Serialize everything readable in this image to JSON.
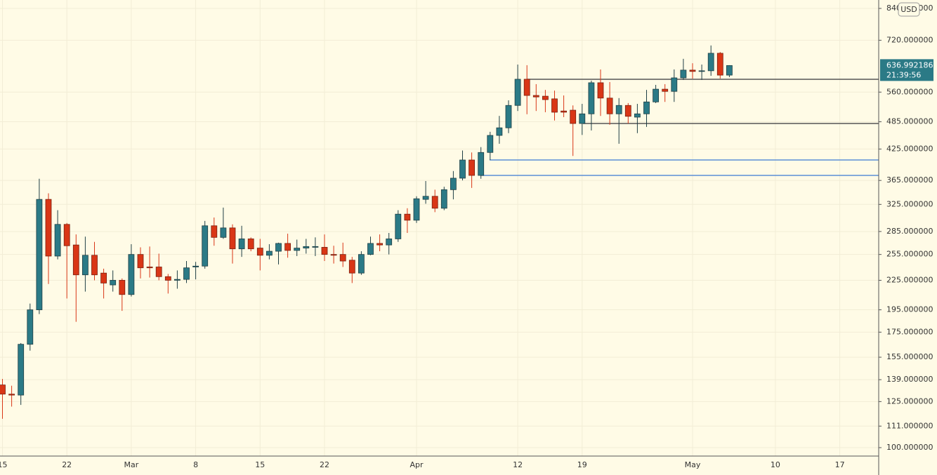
{
  "chart_data": {
    "type": "candlestick",
    "ylim": [
      96,
      875
    ],
    "log_scale": true,
    "grid": true,
    "currency": "USD",
    "countdown": "21:39:56",
    "up_color": "#2b7a86",
    "down_color": "#d93616",
    "yticks": [
      {
        "value": 840,
        "label": "840.000000"
      },
      {
        "value": 720,
        "label": "720.000000"
      },
      {
        "value": 560,
        "label": "560.000000"
      },
      {
        "value": 485,
        "label": "485.000000"
      },
      {
        "value": 425,
        "label": "425.000000"
      },
      {
        "value": 365,
        "label": "365.000000"
      },
      {
        "value": 325,
        "label": "325.000000"
      },
      {
        "value": 285,
        "label": "285.000000"
      },
      {
        "value": 255,
        "label": "255.000000"
      },
      {
        "value": 225,
        "label": "225.000000"
      },
      {
        "value": 195,
        "label": "195.000000"
      },
      {
        "value": 175,
        "label": "175.000000"
      },
      {
        "value": 155,
        "label": "155.000000"
      },
      {
        "value": 139,
        "label": "139.000000"
      },
      {
        "value": 125,
        "label": "125.000000"
      },
      {
        "value": 111,
        "label": "111.000000"
      },
      {
        "value": 100,
        "label": "100.000000"
      }
    ],
    "categories": [
      "15",
      null,
      null,
      null,
      null,
      null,
      null,
      "22",
      null,
      null,
      null,
      null,
      null,
      null,
      "Mar",
      null,
      null,
      null,
      null,
      null,
      null,
      "8",
      null,
      null,
      null,
      null,
      null,
      null,
      "15",
      null,
      null,
      null,
      null,
      null,
      null,
      "22",
      null,
      null,
      null,
      null,
      null,
      null,
      null,
      null,
      null,
      "Apr",
      null,
      null,
      null,
      null,
      null,
      null,
      null,
      null,
      null,
      null,
      "12",
      null,
      null,
      null,
      null,
      null,
      null,
      "19",
      null,
      null,
      null,
      null,
      null,
      null,
      null,
      null,
      null,
      null,
      null,
      "May",
      null,
      null,
      null,
      null,
      null,
      null,
      null,
      null,
      "10",
      null,
      null,
      null,
      null,
      null,
      null,
      "17",
      null,
      null,
      null
    ],
    "open": [
      135.5,
      129.6,
      129,
      165,
      195,
      333,
      253,
      295,
      267,
      231,
      254,
      233,
      220,
      225,
      210,
      255,
      240,
      240,
      229,
      225,
      226,
      240,
      241,
      293,
      277,
      290,
      262,
      275,
      263,
      254,
      259,
      269,
      260,
      263,
      264,
      264,
      255,
      255,
      248,
      233,
      255,
      269,
      267,
      275,
      310,
      301,
      333,
      338,
      319,
      349,
      369,
      403,
      374,
      418,
      454,
      471,
      525,
      596,
      551,
      549,
      542,
      511,
      513,
      481,
      504,
      586,
      544,
      504,
      525,
      496,
      504,
      534,
      568,
      562,
      600,
      623,
      620,
      621,
      676,
      608,
      null,
      null,
      null,
      null,
      null,
      null,
      null,
      null,
      null,
      null,
      null,
      null,
      null,
      null,
      null
    ],
    "high": [
      139.5,
      135,
      166,
      201,
      368,
      343,
      316,
      297,
      281,
      278,
      271,
      238,
      236,
      227,
      268,
      264,
      265,
      256,
      232,
      236,
      247,
      246,
      300,
      305,
      320,
      295,
      293,
      277,
      275,
      268,
      270,
      282,
      274,
      275,
      277,
      281,
      266,
      270,
      252,
      259,
      278,
      281,
      283,
      316,
      319,
      338,
      364,
      349,
      354,
      382,
      422,
      418,
      429,
      462,
      499,
      538,
      640,
      638,
      582,
      566,
      564,
      551,
      525,
      529,
      592,
      625,
      588,
      544,
      531,
      529,
      566,
      580,
      582,
      625,
      658,
      644,
      640,
      702,
      680,
      638,
      null,
      null,
      null,
      null,
      null,
      null,
      null,
      null,
      null,
      null,
      null,
      null,
      null,
      null,
      null
    ],
    "low": [
      115,
      122,
      123,
      160,
      191,
      221,
      249,
      206,
      184,
      213,
      225,
      206,
      213,
      194,
      208,
      227,
      228,
      225,
      211,
      216,
      222,
      226,
      238,
      266,
      275,
      244,
      252,
      259,
      236,
      249,
      243,
      251,
      253,
      256,
      253,
      247,
      244,
      240,
      222,
      231,
      254,
      259,
      255,
      271,
      283,
      297,
      326,
      313,
      316,
      333,
      365,
      352,
      368,
      403,
      436,
      459,
      511,
      503,
      511,
      508,
      488,
      496,
      411,
      455,
      465,
      499,
      478,
      436,
      481,
      459,
      473,
      531,
      534,
      534,
      594,
      598,
      594,
      606,
      598,
      602,
      null,
      null,
      null,
      null,
      null,
      null,
      null,
      null,
      null,
      null,
      null,
      null,
      null,
      null,
      null
    ],
    "close": [
      129.6,
      129,
      165,
      195,
      333,
      253,
      295,
      266,
      231,
      254,
      231,
      222,
      225,
      210,
      255,
      239,
      239,
      229,
      225,
      226,
      239,
      241,
      293,
      277,
      290,
      262,
      275,
      262,
      254,
      259,
      269,
      260,
      263,
      265,
      265,
      255,
      254,
      247,
      233,
      255,
      269,
      267,
      275,
      310,
      301,
      334,
      338,
      319,
      349,
      369,
      403,
      374,
      418,
      454,
      471,
      525,
      596,
      551,
      547,
      540,
      508,
      508,
      481,
      504,
      586,
      544,
      504,
      525,
      498,
      504,
      534,
      568,
      562,
      600,
      623,
      619,
      621,
      676,
      608,
      636.992186,
      null,
      null,
      null,
      null,
      null,
      null,
      null,
      null,
      null,
      null,
      null,
      null,
      null,
      null,
      null
    ],
    "horizontal_lines": [
      {
        "value": 596,
        "color": "#555555"
      },
      {
        "value": 481,
        "color": "#555555"
      },
      {
        "value": 403,
        "color": "#5b8fd6"
      },
      {
        "value": 374,
        "color": "#5b8fd6"
      }
    ]
  }
}
